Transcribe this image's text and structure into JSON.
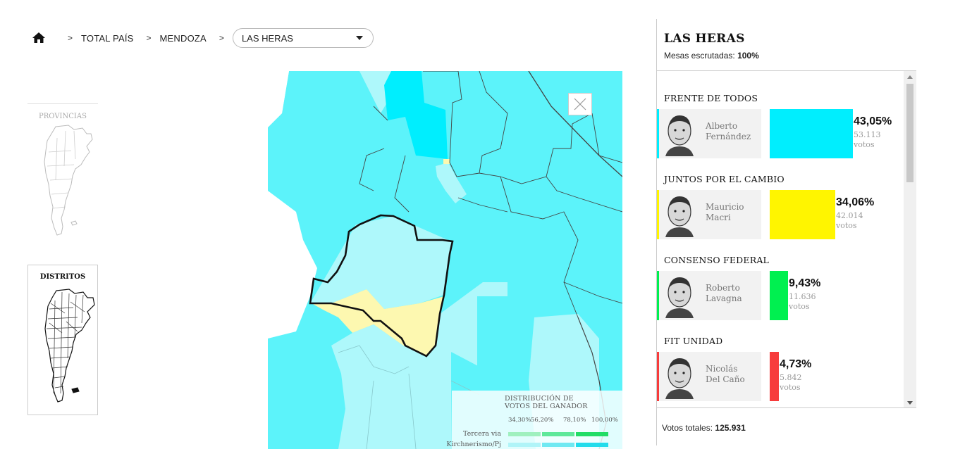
{
  "breadcrumb": {
    "separator": ">",
    "items": [
      "TOTAL PAÍS",
      "MENDOZA"
    ],
    "selected": "LAS HERAS"
  },
  "minimaps": {
    "provinces_label": "PROVINCIAS",
    "districts_label": "DISTRITOS"
  },
  "legend": {
    "title_line1": "DISTRIBUCIÓN DE",
    "title_line2": "VOTOS DEL GANADOR",
    "ticks": [
      "34,30%",
      "56,20%",
      "78,10%",
      "100,00%"
    ],
    "rows": [
      {
        "label": "Tercera via",
        "colors": [
          "#9ff0bf",
          "#5fe89a",
          "#22dd66"
        ]
      },
      {
        "label": "Kirchnerismo/Pj",
        "colors": [
          "#b0f4f8",
          "#6fe9f2",
          "#22dceb"
        ]
      }
    ]
  },
  "colors": {
    "fdt": "#00eefe",
    "jxc": "#fff500",
    "cf": "#00f050",
    "fit": "#f73c3c",
    "map_light": "#aef8fb",
    "map_mid": "#5cf3fa",
    "map_strong": "#00eefe",
    "map_yellow": "#fdf8b0"
  },
  "panel": {
    "title": "LAS HERAS",
    "subtitle_label": "Mesas escrutadas:",
    "subtitle_value": "100%",
    "total_label": "Votos totales:",
    "total_value": "125.931",
    "parties": [
      {
        "party": "FRENTE DE TODOS",
        "first": "Alberto",
        "last": "Fernández",
        "pct": "43,05%",
        "pct_value": 43.05,
        "votes": "53.113",
        "votes_label": "votos",
        "color": "#00eefe"
      },
      {
        "party": "JUNTOS POR EL CAMBIO",
        "first": "Mauricio",
        "last": "Macri",
        "pct": "34,06%",
        "pct_value": 34.06,
        "votes": "42.014",
        "votes_label": "votos",
        "color": "#fff500"
      },
      {
        "party": "CONSENSO FEDERAL",
        "first": "Roberto",
        "last": "Lavagna",
        "pct": "9,43%",
        "pct_value": 9.43,
        "votes": "11.636",
        "votes_label": "votos",
        "color": "#00f050"
      },
      {
        "party": "FIT UNIDAD",
        "first": "Nicolás",
        "last": "Del Caño",
        "pct": "4,73%",
        "pct_value": 4.73,
        "votes": "5.842",
        "votes_label": "votos",
        "color": "#f73c3c"
      }
    ]
  }
}
